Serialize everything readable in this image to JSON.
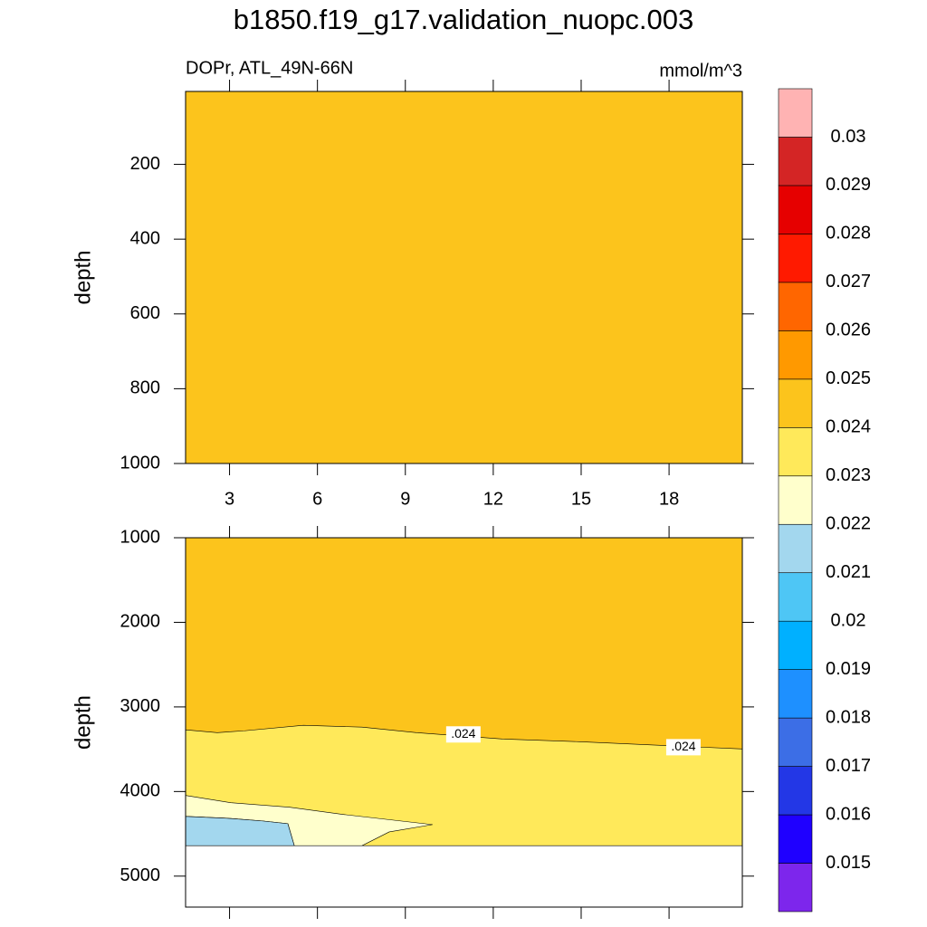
{
  "chart_data": [
    {
      "type": "contour",
      "title": "b1850.f19_g17.validation_nuopc.003",
      "left_label": "DOPr, ATL_49N-66N",
      "right_label": "mmol/m^3",
      "ylabel": "depth",
      "xlim": [
        1.5,
        20.5
      ],
      "xticks": [
        3,
        6,
        9,
        12,
        15,
        18
      ],
      "xtick_labels": true,
      "ylim": [
        5,
        1000
      ],
      "y_reversed": true,
      "yticks": [
        200,
        400,
        600,
        800,
        1000
      ],
      "regions": [
        {
          "levels": [
            0.024,
            0.025
          ],
          "polygon": [
            [
              1.5,
              5
            ],
            [
              20.5,
              5
            ],
            [
              20.5,
              1000
            ],
            [
              1.5,
              1000
            ]
          ]
        }
      ]
    },
    {
      "type": "contour",
      "ylabel": "depth",
      "xlim": [
        1.5,
        20.5
      ],
      "xticks": [
        3,
        6,
        9,
        12,
        15,
        18
      ],
      "xtick_labels": false,
      "ylim": [
        1000,
        5366
      ],
      "y_reversed": true,
      "yticks": [
        1000,
        2000,
        3000,
        4000,
        5000
      ],
      "regions": [
        {
          "levels": [
            0.024,
            0.025
          ],
          "polygon": [
            [
              1.5,
              1000
            ],
            [
              20.5,
              1000
            ],
            [
              20.5,
              4640
            ],
            [
              1.5,
              4640
            ]
          ]
        },
        {
          "levels": [
            0.023,
            0.024
          ],
          "polygon": [
            [
              1.5,
              3271
            ],
            [
              2.58,
              3304
            ],
            [
              3.51,
              3282
            ],
            [
              5.52,
              3217
            ],
            [
              7.52,
              3239
            ],
            [
              9.38,
              3304
            ],
            [
              12.31,
              3379
            ],
            [
              14.94,
              3411
            ],
            [
              20.5,
              3497
            ],
            [
              20.5,
              4640
            ],
            [
              1.5,
              4640
            ]
          ]
        },
        {
          "levels": [
            0.022,
            0.023
          ],
          "polygon": [
            [
              1.5,
              4046
            ],
            [
              3.04,
              4132
            ],
            [
              5.05,
              4186
            ],
            [
              6.91,
              4272
            ],
            [
              9.93,
              4391
            ],
            [
              8.45,
              4477
            ],
            [
              7.52,
              4640
            ],
            [
              5.21,
              4640
            ],
            [
              4.99,
              4380
            ],
            [
              4.13,
              4348
            ],
            [
              2.89,
              4315
            ],
            [
              1.5,
              4294
            ]
          ]
        },
        {
          "levels": [
            0.021,
            0.022
          ],
          "polygon": [
            [
              1.5,
              4294
            ],
            [
              2.89,
              4315
            ],
            [
              4.13,
              4348
            ],
            [
              4.99,
              4380
            ],
            [
              5.21,
              4640
            ],
            [
              1.5,
              4640
            ]
          ]
        }
      ],
      "contour_labels": [
        {
          "text": ".024",
          "x": 10.98,
          "y": 3325
        },
        {
          "text": ".024",
          "x": 18.49,
          "y": 3476
        }
      ]
    }
  ],
  "colorbar": {
    "levels": [
      0.015,
      0.016,
      0.017,
      0.018,
      0.019,
      0.02,
      0.021,
      0.022,
      0.023,
      0.024,
      0.025,
      0.026,
      0.027,
      0.028,
      0.029,
      0.03
    ],
    "colors": [
      "#7d26ec",
      "#1f00ff",
      "#2337e6",
      "#3c6ee6",
      "#1e90ff",
      "#00b0ff",
      "#4ec6f5",
      "#a3d7ee",
      "#ffffcc",
      "#ffe95a",
      "#fcc41c",
      "#ff9900",
      "#ff6600",
      "#ff1a00",
      "#e60000",
      "#d42525",
      "#ffb3b3"
    ]
  }
}
